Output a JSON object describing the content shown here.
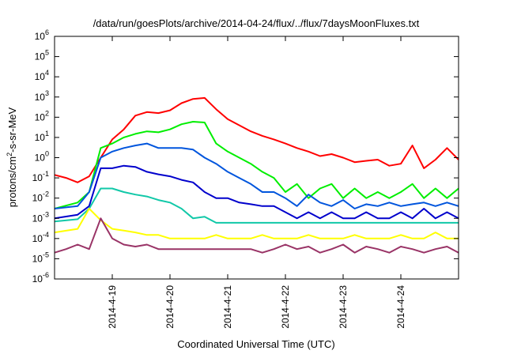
{
  "chart_data": {
    "type": "line",
    "title": "/data/run/goesPlots/archive/2014-04-24/flux/../flux/7daysMoonFluxes.txt",
    "xlabel": "Coordinated Universal Time (UTC)",
    "ylabel": {
      "base": "protons/cm",
      "sup": "2",
      "rest": "-s-sr-MeV"
    },
    "xlim": [
      "2014-04-18",
      "2014-04-25"
    ],
    "x_tick_labels": [
      "2014-4-19",
      "2014-4-20",
      "2014-4-21",
      "2014-4-22",
      "2014-4-23",
      "2014-4-24"
    ],
    "x_ticks": [
      "2014-04-19",
      "2014-04-20",
      "2014-04-21",
      "2014-04-22",
      "2014-04-23",
      "2014-04-24"
    ],
    "y_scale": "log",
    "ylim": [
      1e-06,
      1000000.0
    ],
    "y_ticks": [
      {
        "value": 1e-06,
        "base": "10",
        "exp": "-6"
      },
      {
        "value": 1e-05,
        "base": "10",
        "exp": "-5"
      },
      {
        "value": 0.0001,
        "base": "10",
        "exp": "-4"
      },
      {
        "value": 0.001,
        "base": "10",
        "exp": "-3"
      },
      {
        "value": 0.01,
        "base": "10",
        "exp": "-2"
      },
      {
        "value": 0.1,
        "base": "10",
        "exp": "-1"
      },
      {
        "value": 1,
        "base": "10",
        "exp": "0"
      },
      {
        "value": 10.0,
        "base": "10",
        "exp": "1"
      },
      {
        "value": 100.0,
        "base": "10",
        "exp": "2"
      },
      {
        "value": 1000.0,
        "base": "10",
        "exp": "3"
      },
      {
        "value": 10000.0,
        "base": "10",
        "exp": "4"
      },
      {
        "value": 100000.0,
        "base": "10",
        "exp": "5"
      },
      {
        "value": 1000000.0,
        "base": "10",
        "exp": "6"
      }
    ],
    "grid": false,
    "legend": "none",
    "series": [
      {
        "color": "#ff0000",
        "x": [
          "2014-04-18T00:00",
          "2014-04-18T04:48",
          "2014-04-18T09:36",
          "2014-04-18T14:24",
          "2014-04-18T19:12",
          "2014-04-19T00:00",
          "2014-04-19T04:48",
          "2014-04-19T09:36",
          "2014-04-19T14:24",
          "2014-04-19T19:12",
          "2014-04-20T00:00",
          "2014-04-20T04:48",
          "2014-04-20T09:36",
          "2014-04-20T14:24",
          "2014-04-20T19:12",
          "2014-04-21T00:00",
          "2014-04-21T04:48",
          "2014-04-21T09:36",
          "2014-04-21T14:24",
          "2014-04-21T19:12",
          "2014-04-22T00:00",
          "2014-04-22T04:48",
          "2014-04-22T09:36",
          "2014-04-22T14:24",
          "2014-04-22T19:12",
          "2014-04-23T00:00",
          "2014-04-23T04:48",
          "2014-04-23T09:36",
          "2014-04-23T14:24",
          "2014-04-23T19:12",
          "2014-04-24T00:00",
          "2014-04-24T04:48",
          "2014-04-24T09:36",
          "2014-04-24T14:24",
          "2014-04-24T19:12",
          "2014-04-25T00:00"
        ],
        "y": [
          0.14,
          0.1,
          0.06,
          0.12,
          1.0,
          8,
          25,
          120,
          180,
          160,
          220,
          500,
          800,
          900,
          250,
          80,
          40,
          20,
          12,
          8,
          5,
          3,
          2,
          1.2,
          1.5,
          1.0,
          0.6,
          0.7,
          0.8,
          0.4,
          0.5,
          4,
          0.3,
          0.8,
          3,
          0.8
        ]
      },
      {
        "color": "#00ee00",
        "x": [
          "2014-04-18T00:00",
          "2014-04-18T09:36",
          "2014-04-18T14:24",
          "2014-04-18T19:12",
          "2014-04-19T00:00",
          "2014-04-19T04:48",
          "2014-04-19T09:36",
          "2014-04-19T14:24",
          "2014-04-19T19:12",
          "2014-04-20T00:00",
          "2014-04-20T04:48",
          "2014-04-20T09:36",
          "2014-04-20T14:24",
          "2014-04-20T19:12",
          "2014-04-21T00:00",
          "2014-04-21T04:48",
          "2014-04-21T09:36",
          "2014-04-21T14:24",
          "2014-04-21T19:12",
          "2014-04-22T00:00",
          "2014-04-22T04:48",
          "2014-04-22T09:36",
          "2014-04-22T14:24",
          "2014-04-22T19:12",
          "2014-04-23T00:00",
          "2014-04-23T04:48",
          "2014-04-23T09:36",
          "2014-04-23T14:24",
          "2014-04-23T19:12",
          "2014-04-24T00:00",
          "2014-04-24T04:48",
          "2014-04-24T09:36",
          "2014-04-24T14:24",
          "2014-04-24T19:12",
          "2014-04-25T00:00"
        ],
        "y": [
          0.003,
          0.006,
          0.02,
          3,
          5,
          10,
          15,
          20,
          18,
          25,
          45,
          60,
          55,
          5,
          2,
          1,
          0.5,
          0.2,
          0.1,
          0.02,
          0.05,
          0.01,
          0.03,
          0.05,
          0.01,
          0.03,
          0.01,
          0.02,
          0.01,
          0.02,
          0.05,
          0.01,
          0.03,
          0.01,
          0.03
        ]
      },
      {
        "color": "#0055dd",
        "x": [
          "2014-04-18T00:00",
          "2014-04-18T09:36",
          "2014-04-18T14:24",
          "2014-04-18T19:12",
          "2014-04-19T00:00",
          "2014-04-19T04:48",
          "2014-04-19T09:36",
          "2014-04-19T14:24",
          "2014-04-19T19:12",
          "2014-04-20T00:00",
          "2014-04-20T04:48",
          "2014-04-20T09:36",
          "2014-04-20T14:24",
          "2014-04-20T19:12",
          "2014-04-21T00:00",
          "2014-04-21T04:48",
          "2014-04-21T09:36",
          "2014-04-21T14:24",
          "2014-04-21T19:12",
          "2014-04-22T00:00",
          "2014-04-22T04:48",
          "2014-04-22T09:36",
          "2014-04-22T14:24",
          "2014-04-22T19:12",
          "2014-04-23T00:00",
          "2014-04-23T04:48",
          "2014-04-23T09:36",
          "2014-04-23T14:24",
          "2014-04-23T19:12",
          "2014-04-24T00:00",
          "2014-04-24T04:48",
          "2014-04-24T09:36",
          "2014-04-24T14:24",
          "2014-04-24T19:12",
          "2014-04-25T00:00"
        ],
        "y": [
          0.003,
          0.004,
          0.02,
          1,
          2,
          3,
          4,
          5,
          3,
          3,
          3,
          2.5,
          1,
          0.5,
          0.2,
          0.1,
          0.05,
          0.02,
          0.02,
          0.01,
          0.004,
          0.015,
          0.006,
          0.004,
          0.008,
          0.003,
          0.005,
          0.004,
          0.006,
          0.004,
          0.005,
          0.006,
          0.004,
          0.006,
          0.004
        ]
      },
      {
        "color": "#0000cc",
        "x": [
          "2014-04-18T00:00",
          "2014-04-18T09:36",
          "2014-04-18T14:24",
          "2014-04-18T19:12",
          "2014-04-19T00:00",
          "2014-04-19T04:48",
          "2014-04-19T09:36",
          "2014-04-19T14:24",
          "2014-04-19T19:12",
          "2014-04-20T00:00",
          "2014-04-20T04:48",
          "2014-04-20T09:36",
          "2014-04-20T14:24",
          "2014-04-20T19:12",
          "2014-04-21T00:00",
          "2014-04-21T04:48",
          "2014-04-21T09:36",
          "2014-04-21T14:24",
          "2014-04-21T19:12",
          "2014-04-22T00:00",
          "2014-04-22T04:48",
          "2014-04-22T09:36",
          "2014-04-22T14:24",
          "2014-04-22T19:12",
          "2014-04-23T00:00",
          "2014-04-23T04:48",
          "2014-04-23T09:36",
          "2014-04-23T14:24",
          "2014-04-23T19:12",
          "2014-04-24T00:00",
          "2014-04-24T04:48",
          "2014-04-24T09:36",
          "2014-04-24T14:24",
          "2014-04-24T19:12",
          "2014-04-25T00:00"
        ],
        "y": [
          0.001,
          0.0015,
          0.004,
          0.3,
          0.3,
          0.4,
          0.35,
          0.2,
          0.15,
          0.12,
          0.08,
          0.06,
          0.02,
          0.01,
          0.01,
          0.006,
          0.005,
          0.004,
          0.004,
          0.002,
          0.001,
          0.002,
          0.001,
          0.002,
          0.001,
          0.001,
          0.002,
          0.001,
          0.001,
          0.002,
          0.001,
          0.003,
          0.001,
          0.002,
          0.001
        ]
      },
      {
        "color": "#11c8a8",
        "x": [
          "2014-04-18T00:00",
          "2014-04-18T09:36",
          "2014-04-18T14:24",
          "2014-04-18T19:12",
          "2014-04-19T00:00",
          "2014-04-19T04:48",
          "2014-04-19T09:36",
          "2014-04-19T14:24",
          "2014-04-19T19:12",
          "2014-04-20T00:00",
          "2014-04-20T04:48",
          "2014-04-20T09:36",
          "2014-04-20T14:24",
          "2014-04-20T19:12",
          "2014-04-21T00:00",
          "2014-04-21T04:48",
          "2014-04-21T09:36",
          "2014-04-21T14:24",
          "2014-04-21T19:12",
          "2014-04-22T00:00",
          "2014-04-22T04:48",
          "2014-04-22T09:36",
          "2014-04-22T14:24",
          "2014-04-22T19:12",
          "2014-04-23T00:00",
          "2014-04-23T04:48",
          "2014-04-23T09:36",
          "2014-04-23T14:24",
          "2014-04-23T19:12",
          "2014-04-24T00:00",
          "2014-04-24T04:48",
          "2014-04-24T09:36",
          "2014-04-24T14:24",
          "2014-04-24T19:12",
          "2014-04-25T00:00"
        ],
        "y": [
          0.0007,
          0.0009,
          0.003,
          0.03,
          0.03,
          0.02,
          0.015,
          0.012,
          0.008,
          0.006,
          0.003,
          0.001,
          0.0012,
          0.0006,
          0.0006,
          0.0006,
          0.0006,
          0.0006,
          0.0006,
          0.0006,
          0.0006,
          0.0006,
          0.0006,
          0.0006,
          0.0006,
          0.0006,
          0.0006,
          0.0006,
          0.0006,
          0.0006,
          0.0006,
          0.0006,
          0.0006,
          0.0006,
          0.0006
        ]
      },
      {
        "color": "#ffff00",
        "x": [
          "2014-04-18T00:00",
          "2014-04-18T09:36",
          "2014-04-18T14:24",
          "2014-04-18T19:12",
          "2014-04-19T00:00",
          "2014-04-19T04:48",
          "2014-04-19T09:36",
          "2014-04-19T14:24",
          "2014-04-19T19:12",
          "2014-04-20T00:00",
          "2014-04-20T04:48",
          "2014-04-20T09:36",
          "2014-04-20T14:24",
          "2014-04-20T19:12",
          "2014-04-21T00:00",
          "2014-04-21T04:48",
          "2014-04-21T09:36",
          "2014-04-21T14:24",
          "2014-04-21T19:12",
          "2014-04-22T00:00",
          "2014-04-22T04:48",
          "2014-04-22T09:36",
          "2014-04-22T14:24",
          "2014-04-22T19:12",
          "2014-04-23T00:00",
          "2014-04-23T04:48",
          "2014-04-23T09:36",
          "2014-04-23T14:24",
          "2014-04-23T19:12",
          "2014-04-24T00:00",
          "2014-04-24T04:48",
          "2014-04-24T09:36",
          "2014-04-24T14:24",
          "2014-04-24T19:12",
          "2014-04-25T00:00"
        ],
        "y": [
          0.0002,
          0.0003,
          0.003,
          0.0008,
          0.0003,
          0.00025,
          0.0002,
          0.00015,
          0.00015,
          0.0001,
          0.0001,
          0.0001,
          0.0001,
          0.00015,
          0.0001,
          0.0001,
          0.0001,
          0.00015,
          0.0001,
          0.0001,
          0.0001,
          0.00015,
          0.0001,
          0.0001,
          0.0001,
          0.00015,
          0.0001,
          0.0001,
          0.0001,
          0.00015,
          0.0001,
          0.0001,
          0.0002,
          0.0001,
          0.0001
        ]
      },
      {
        "color": "#993366",
        "x": [
          "2014-04-18T00:00",
          "2014-04-18T04:48",
          "2014-04-18T09:36",
          "2014-04-18T14:24",
          "2014-04-18T19:12",
          "2014-04-19T00:00",
          "2014-04-19T04:48",
          "2014-04-19T09:36",
          "2014-04-19T14:24",
          "2014-04-19T19:12",
          "2014-04-20T00:00",
          "2014-04-20T04:48",
          "2014-04-20T09:36",
          "2014-04-20T14:24",
          "2014-04-20T19:12",
          "2014-04-21T00:00",
          "2014-04-21T04:48",
          "2014-04-21T09:36",
          "2014-04-21T14:24",
          "2014-04-21T19:12",
          "2014-04-22T00:00",
          "2014-04-22T04:48",
          "2014-04-22T09:36",
          "2014-04-22T14:24",
          "2014-04-22T19:12",
          "2014-04-23T00:00",
          "2014-04-23T04:48",
          "2014-04-23T09:36",
          "2014-04-23T14:24",
          "2014-04-23T19:12",
          "2014-04-24T00:00",
          "2014-04-24T04:48",
          "2014-04-24T09:36",
          "2014-04-24T14:24",
          "2014-04-24T19:12",
          "2014-04-25T00:00"
        ],
        "y": [
          2e-05,
          3e-05,
          5e-05,
          3e-05,
          0.001,
          0.0001,
          5e-05,
          4e-05,
          5e-05,
          3e-05,
          3e-05,
          3e-05,
          3e-05,
          3e-05,
          3e-05,
          3e-05,
          3e-05,
          3e-05,
          2e-05,
          3e-05,
          5e-05,
          3e-05,
          4e-05,
          2e-05,
          3e-05,
          5e-05,
          2e-05,
          4e-05,
          3e-05,
          2e-05,
          4e-05,
          3e-05,
          2e-05,
          3e-05,
          4e-05,
          2e-05
        ]
      }
    ]
  }
}
